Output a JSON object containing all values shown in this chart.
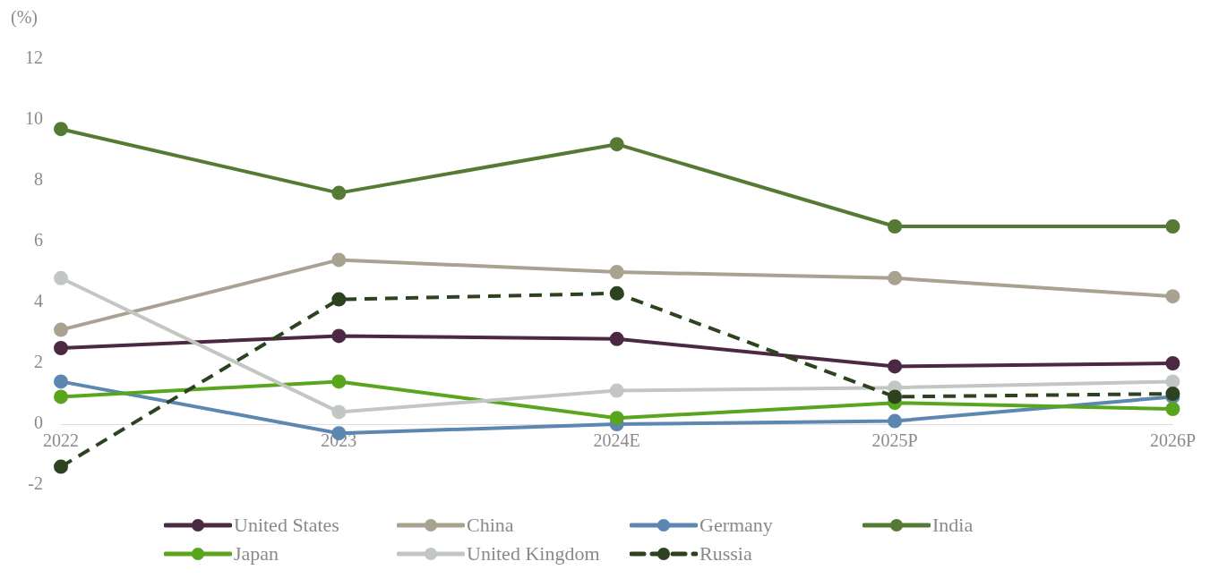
{
  "chart_data": {
    "type": "line",
    "ylabel": "(%)",
    "categories": [
      "2022",
      "2023",
      "2024E",
      "2025P",
      "2026P"
    ],
    "series": [
      {
        "name": "United States",
        "color": "#4b2942",
        "values": [
          2.5,
          2.9,
          2.8,
          1.9,
          2.0
        ]
      },
      {
        "name": "China",
        "color": "#aaa291",
        "values": [
          3.1,
          5.4,
          5.0,
          4.8,
          4.2
        ]
      },
      {
        "name": "Germany",
        "color": "#5b87b0",
        "values": [
          1.4,
          -0.3,
          0.0,
          0.1,
          0.9
        ]
      },
      {
        "name": "India",
        "color": "#567a33",
        "values": [
          9.7,
          7.6,
          9.2,
          6.5,
          6.5
        ]
      },
      {
        "name": "Japan",
        "color": "#5aa51e",
        "values": [
          0.9,
          1.4,
          0.2,
          0.7,
          0.5
        ]
      },
      {
        "name": "United Kingdom",
        "color": "#c3c7c4",
        "values": [
          4.8,
          0.4,
          1.1,
          1.2,
          1.4
        ]
      },
      {
        "name": "Russia",
        "color": "#2d4220",
        "values": [
          -1.4,
          4.1,
          4.3,
          0.9,
          1.0
        ],
        "line_style": "dashed"
      }
    ],
    "ylim": [
      -2,
      12
    ],
    "yticks": [
      -2,
      0,
      2,
      4,
      6,
      8,
      10,
      12
    ],
    "grid": false,
    "legend": "bottom",
    "marker": "circle",
    "line_style": "solid"
  }
}
